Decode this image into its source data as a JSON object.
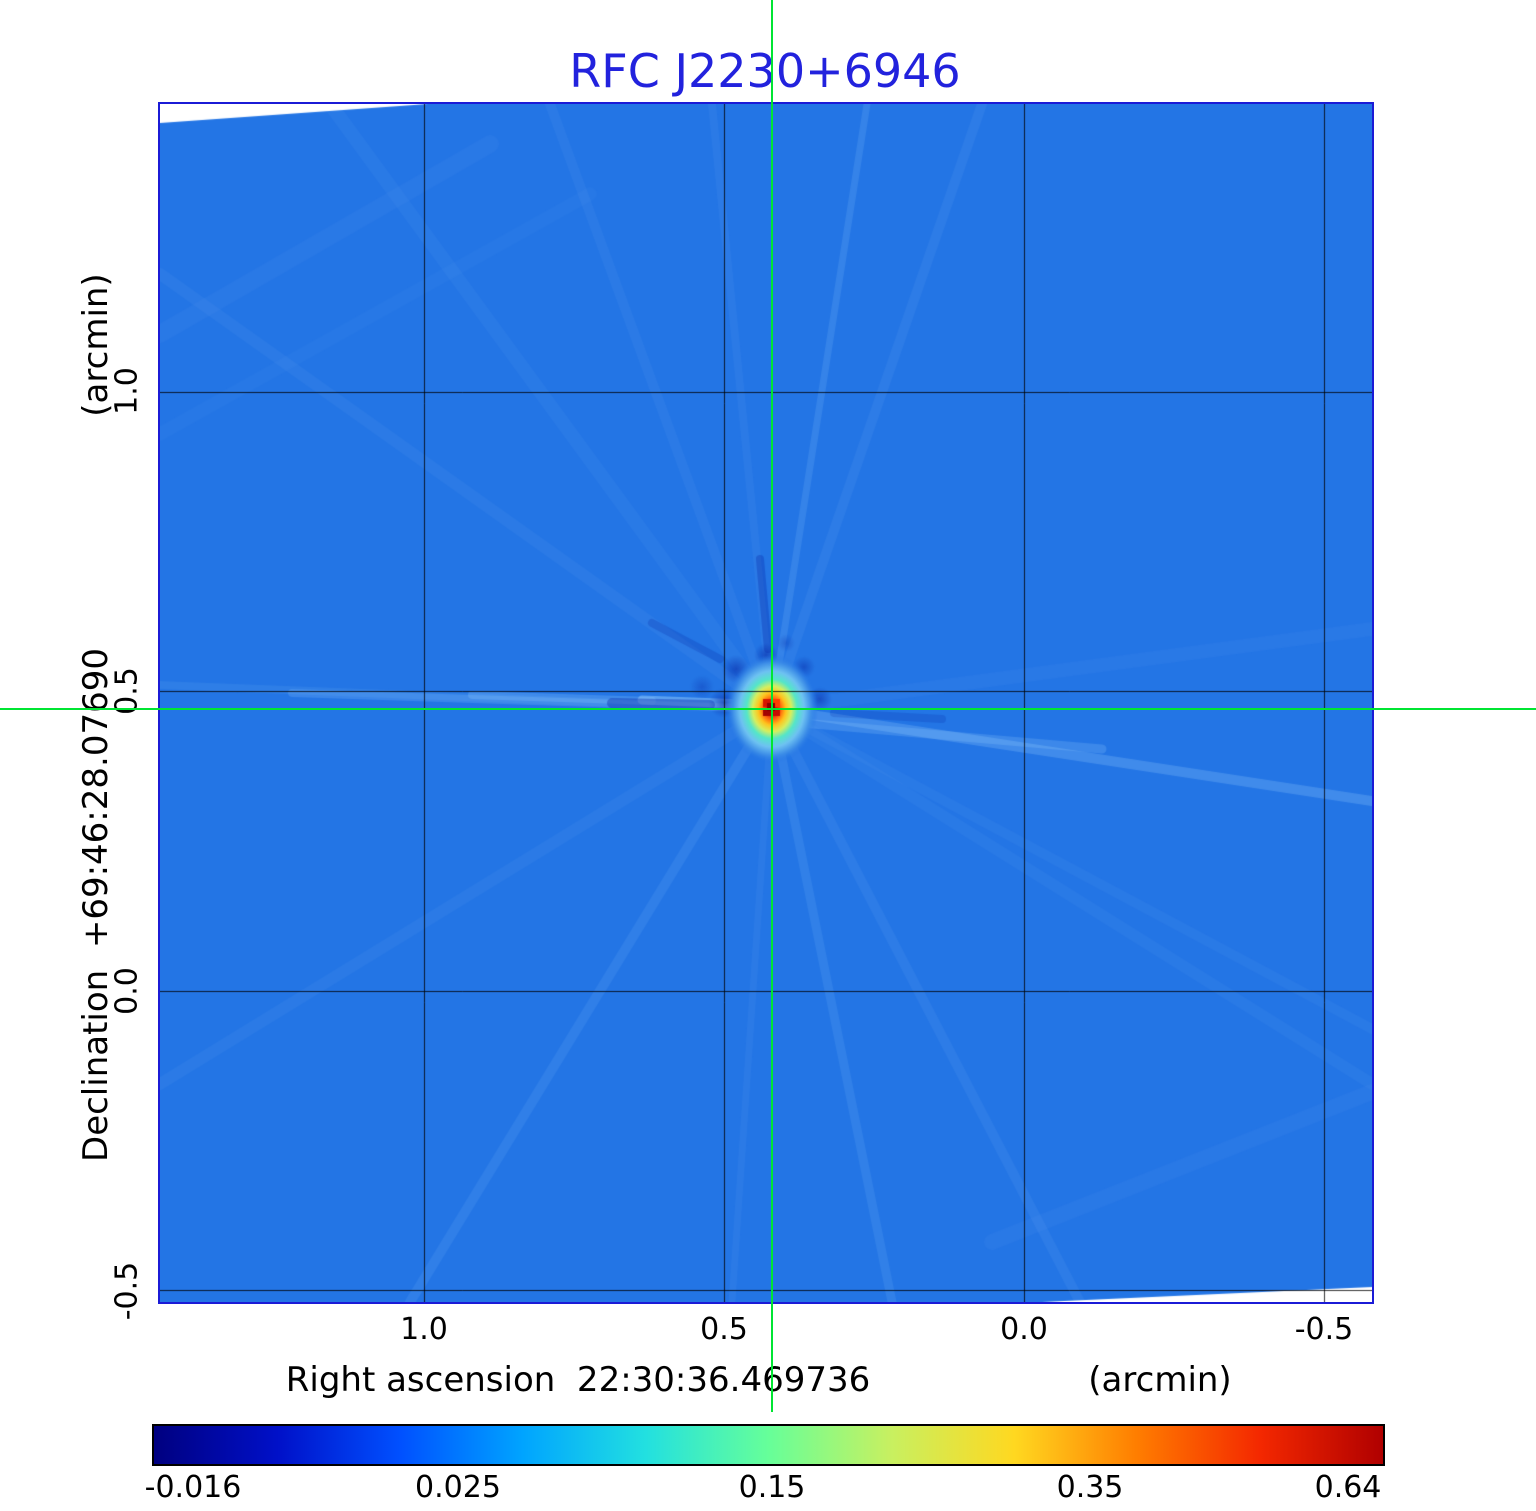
{
  "title": "RFC J2230+6946",
  "y_axis": {
    "unit_label": "(arcmin)",
    "label": "Declination  +69:46:28.07690",
    "ticks": [
      "1.0",
      "0.5",
      "0.0",
      "-0.5"
    ]
  },
  "x_axis": {
    "label": "Right ascension  22:30:36.469736",
    "unit_label": "(arcmin)",
    "ticks": [
      "1.0",
      "0.5",
      "0.0",
      "-0.5"
    ]
  },
  "colorbar": {
    "labels": [
      "-0.016",
      "0.025",
      "0.15",
      "0.35",
      "0.64"
    ]
  },
  "chart_data": {
    "type": "heatmap",
    "title": "RFC J2230+6946",
    "xlabel": "Right ascension 22:30:36.469736 (arcmin)",
    "ylabel": "Declination +69:46:28.07690 (arcmin)",
    "x_range_arcmin": [
      1.44,
      -0.58
    ],
    "y_range_arcmin": [
      -0.52,
      1.48
    ],
    "x_ticks": [
      1.0,
      0.5,
      0.0,
      -0.5
    ],
    "y_ticks": [
      1.0,
      0.5,
      0.0,
      -0.5
    ],
    "grid": true,
    "colormap": "jet",
    "colorbar_ticks": [
      -0.016,
      0.025,
      0.15,
      0.35,
      0.64
    ],
    "colorbar_range": [
      -0.016,
      0.64
    ],
    "source": {
      "name": "RFC J2230+6946",
      "ra": "22:30:36.469736",
      "dec": "+69:46:28.07690",
      "ra_offset_arcmin": 0.42,
      "dec_offset_arcmin": 0.47,
      "peak_intensity": 0.64
    },
    "colors": {
      "title_blue": "#2222dd",
      "frame_blue": "#1b1bd6",
      "crosshair_green": "#00e532",
      "background_blue": "#2375e5",
      "grid_black": "#000000",
      "colormap_stops": [
        "#000080",
        "#0010c8",
        "#0050ff",
        "#00a4ff",
        "#22e0e0",
        "#66ff99",
        "#c8f060",
        "#ffd820",
        "#ff7d00",
        "#f42800",
        "#b00000"
      ]
    }
  }
}
